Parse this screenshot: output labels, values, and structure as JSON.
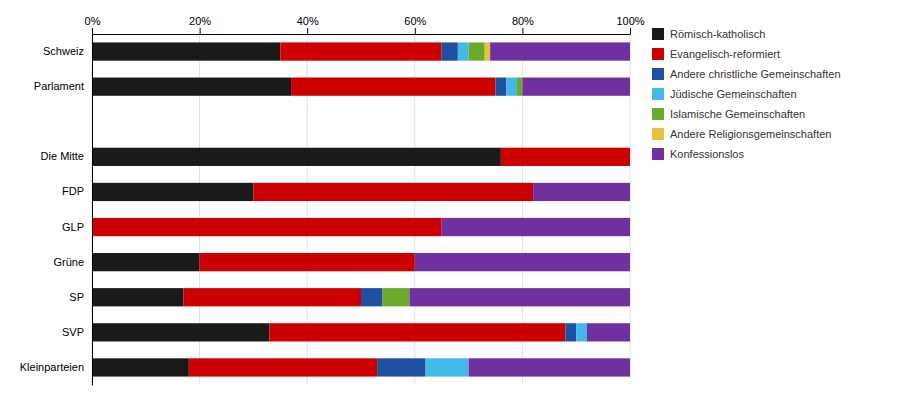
{
  "chart_data": {
    "type": "bar",
    "orientation": "horizontal",
    "stacked": true,
    "categories": [
      "Schweiz",
      "Parlament",
      null,
      "Die Mitte",
      "FDP",
      "GLP",
      "Grüne",
      "SP",
      "SVP",
      "Kleinparteien"
    ],
    "series": [
      {
        "name": "Römisch-katholisch",
        "color": "#1a1a1a",
        "values": [
          35,
          37,
          0,
          76,
          30,
          0,
          20,
          17,
          33,
          18
        ]
      },
      {
        "name": "Evangelisch-reformiert",
        "color": "#cc0000",
        "values": [
          30,
          38,
          0,
          24,
          52,
          65,
          40,
          33,
          55,
          35
        ]
      },
      {
        "name": "Andere christliche Gemeinschaften",
        "color": "#1e4fa0",
        "values": [
          3,
          2,
          0,
          0,
          0,
          0,
          0,
          4,
          2,
          9
        ]
      },
      {
        "name": "Jüdische Gemeinschaften",
        "color": "#44b8e8",
        "values": [
          2,
          2,
          0,
          0,
          0,
          0,
          0,
          0,
          2,
          8
        ]
      },
      {
        "name": "Islamische Gemeinschaften",
        "color": "#6aaa2b",
        "values": [
          3,
          1,
          0,
          0,
          0,
          0,
          0,
          5,
          0,
          0
        ]
      },
      {
        "name": "Andere Religionsgemeinschaften",
        "color": "#e8c040",
        "values": [
          1,
          0,
          0,
          0,
          0,
          0,
          0,
          0,
          0,
          0
        ]
      },
      {
        "name": "Konfessionslos",
        "color": "#7030a0",
        "values": [
          26,
          20,
          0,
          0,
          18,
          35,
          40,
          41,
          8,
          30
        ]
      }
    ],
    "xlim": [
      0,
      100
    ],
    "xticks": [
      {
        "value": 0,
        "label": "0%"
      },
      {
        "value": 20,
        "label": "20%"
      },
      {
        "value": 40,
        "label": "40%"
      },
      {
        "value": 60,
        "label": "60%"
      },
      {
        "value": 80,
        "label": "80%"
      },
      {
        "value": 100,
        "label": "100%"
      }
    ],
    "grid": true,
    "legend": "right"
  }
}
